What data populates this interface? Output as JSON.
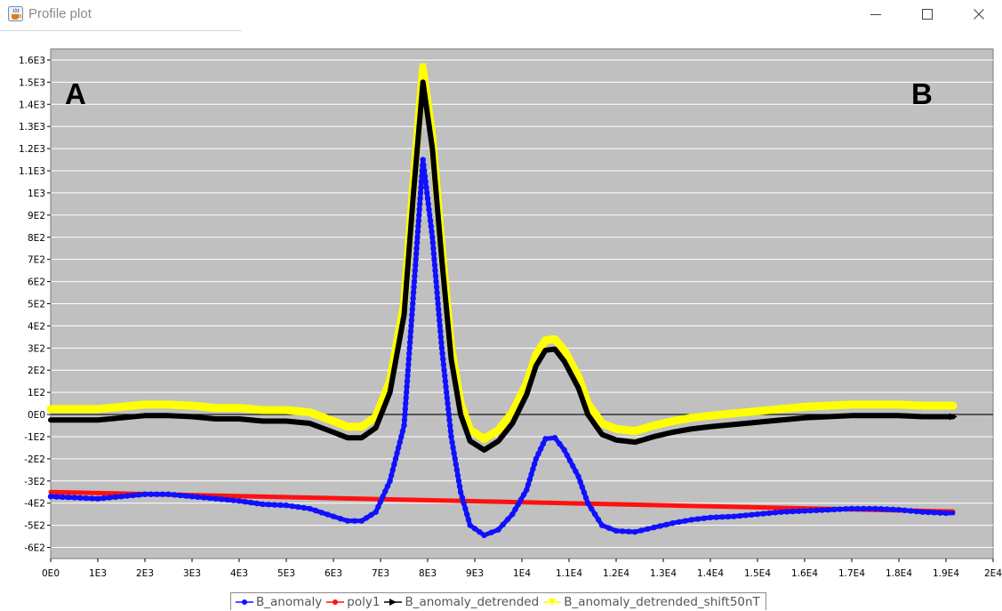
{
  "window": {
    "title": "Profile plot",
    "app_icon": "java-coffee-cup-icon",
    "controls": [
      "minimize-icon",
      "maximize-icon",
      "close-icon"
    ]
  },
  "colors": {
    "plot_background": "#c0c0c0",
    "grid": "#ffffff",
    "zero_line": "#000000",
    "B_anomaly": "#1010ff",
    "poly1": "#ff1010",
    "B_anomaly_detrended": "#000000",
    "B_anomaly_detrended_shift50nT": "#ffff00"
  },
  "annotations": {
    "left": "A",
    "right": "B"
  },
  "chart_data": {
    "type": "line",
    "title": "",
    "xlabel": "",
    "ylabel": "",
    "xlim": [
      0,
      20000
    ],
    "ylim": [
      -650,
      1650
    ],
    "grid": true,
    "legend_position": "bottom-center",
    "x_ticks": [
      0,
      1000,
      2000,
      3000,
      4000,
      5000,
      6000,
      7000,
      8000,
      9000,
      10000,
      11000,
      12000,
      13000,
      14000,
      15000,
      16000,
      17000,
      18000,
      19000,
      20000
    ],
    "x_tick_labels": [
      "0E0",
      "1E3",
      "2E3",
      "3E3",
      "4E3",
      "5E3",
      "6E3",
      "7E3",
      "8E3",
      "9E3",
      "1E4",
      "1.1E4",
      "1.2E4",
      "1.3E4",
      "1.4E4",
      "1.5E4",
      "1.6E4",
      "1.7E4",
      "1.8E4",
      "1.9E4",
      "2E4"
    ],
    "y_ticks": [
      -600,
      -500,
      -400,
      -300,
      -200,
      -100,
      0,
      100,
      200,
      300,
      400,
      500,
      600,
      700,
      800,
      900,
      1000,
      1100,
      1200,
      1300,
      1400,
      1500,
      1600
    ],
    "y_tick_labels": [
      "-6E2",
      "-5E2",
      "-4E2",
      "-3E2",
      "-2E2",
      "-1E2",
      "0E0",
      "1E2",
      "2E2",
      "3E2",
      "4E2",
      "5E2",
      "6E2",
      "7E2",
      "8E2",
      "9E2",
      "1E3",
      "1.1E3",
      "1.2E3",
      "1.3E3",
      "1.4E3",
      "1.5E3",
      "1.6E3"
    ],
    "series": [
      {
        "name": "B_anomaly",
        "color": "#1010ff",
        "marker": "circle",
        "points": [
          [
            0,
            -370
          ],
          [
            500,
            -375
          ],
          [
            1000,
            -380
          ],
          [
            1500,
            -370
          ],
          [
            2000,
            -360
          ],
          [
            2500,
            -360
          ],
          [
            3000,
            -370
          ],
          [
            3500,
            -380
          ],
          [
            4000,
            -390
          ],
          [
            4500,
            -405
          ],
          [
            5000,
            -410
          ],
          [
            5500,
            -425
          ],
          [
            6000,
            -460
          ],
          [
            6300,
            -480
          ],
          [
            6600,
            -480
          ],
          [
            6900,
            -440
          ],
          [
            7200,
            -300
          ],
          [
            7500,
            -50
          ],
          [
            7700,
            550
          ],
          [
            7900,
            1150
          ],
          [
            8100,
            800
          ],
          [
            8300,
            300
          ],
          [
            8500,
            -100
          ],
          [
            8700,
            -350
          ],
          [
            8900,
            -500
          ],
          [
            9200,
            -545
          ],
          [
            9500,
            -520
          ],
          [
            9800,
            -450
          ],
          [
            10100,
            -340
          ],
          [
            10300,
            -200
          ],
          [
            10500,
            -110
          ],
          [
            10700,
            -105
          ],
          [
            10900,
            -160
          ],
          [
            11200,
            -280
          ],
          [
            11400,
            -400
          ],
          [
            11700,
            -500
          ],
          [
            12000,
            -525
          ],
          [
            12400,
            -530
          ],
          [
            12800,
            -510
          ],
          [
            13200,
            -490
          ],
          [
            13600,
            -475
          ],
          [
            14000,
            -465
          ],
          [
            14500,
            -460
          ],
          [
            15000,
            -450
          ],
          [
            15500,
            -440
          ],
          [
            16000,
            -435
          ],
          [
            16500,
            -430
          ],
          [
            17000,
            -425
          ],
          [
            17500,
            -425
          ],
          [
            18000,
            -430
          ],
          [
            18500,
            -440
          ],
          [
            19000,
            -445
          ],
          [
            19150,
            -445
          ]
        ]
      },
      {
        "name": "poly1",
        "color": "#ff1010",
        "marker": "circle",
        "points": [
          [
            0,
            -350
          ],
          [
            19150,
            -438
          ]
        ]
      },
      {
        "name": "B_anomaly_detrended",
        "color": "#000000",
        "marker": "triangle-right",
        "points": [
          [
            0,
            -25
          ],
          [
            500,
            -25
          ],
          [
            1000,
            -25
          ],
          [
            1500,
            -15
          ],
          [
            2000,
            -5
          ],
          [
            2500,
            -5
          ],
          [
            3000,
            -10
          ],
          [
            3500,
            -20
          ],
          [
            4000,
            -20
          ],
          [
            4500,
            -30
          ],
          [
            5000,
            -30
          ],
          [
            5500,
            -40
          ],
          [
            6000,
            -80
          ],
          [
            6300,
            -105
          ],
          [
            6600,
            -105
          ],
          [
            6900,
            -60
          ],
          [
            7200,
            100
          ],
          [
            7500,
            450
          ],
          [
            7700,
            1000
          ],
          [
            7900,
            1500
          ],
          [
            8100,
            1200
          ],
          [
            8300,
            700
          ],
          [
            8500,
            250
          ],
          [
            8700,
            0
          ],
          [
            8900,
            -120
          ],
          [
            9200,
            -160
          ],
          [
            9500,
            -120
          ],
          [
            9800,
            -40
          ],
          [
            10100,
            90
          ],
          [
            10300,
            220
          ],
          [
            10500,
            290
          ],
          [
            10700,
            295
          ],
          [
            10900,
            240
          ],
          [
            11200,
            120
          ],
          [
            11400,
            0
          ],
          [
            11700,
            -90
          ],
          [
            12000,
            -115
          ],
          [
            12400,
            -125
          ],
          [
            12800,
            -100
          ],
          [
            13200,
            -80
          ],
          [
            13600,
            -65
          ],
          [
            14000,
            -55
          ],
          [
            14500,
            -45
          ],
          [
            15000,
            -35
          ],
          [
            15500,
            -25
          ],
          [
            16000,
            -15
          ],
          [
            16500,
            -10
          ],
          [
            17000,
            -5
          ],
          [
            17500,
            -5
          ],
          [
            18000,
            -5
          ],
          [
            18500,
            -10
          ],
          [
            19000,
            -10
          ],
          [
            19150,
            -10
          ]
        ]
      },
      {
        "name": "B_anomaly_detrended_shift50nT",
        "color": "#ffff00",
        "marker": "triangle-down",
        "points": [
          [
            0,
            25
          ],
          [
            500,
            25
          ],
          [
            1000,
            25
          ],
          [
            1500,
            35
          ],
          [
            2000,
            45
          ],
          [
            2500,
            45
          ],
          [
            3000,
            40
          ],
          [
            3500,
            30
          ],
          [
            4000,
            30
          ],
          [
            4500,
            20
          ],
          [
            5000,
            20
          ],
          [
            5500,
            10
          ],
          [
            6000,
            -30
          ],
          [
            6300,
            -55
          ],
          [
            6600,
            -55
          ],
          [
            6900,
            -10
          ],
          [
            7200,
            150
          ],
          [
            7500,
            500
          ],
          [
            7700,
            1050
          ],
          [
            7900,
            1560
          ],
          [
            8100,
            1250
          ],
          [
            8300,
            750
          ],
          [
            8500,
            300
          ],
          [
            8700,
            50
          ],
          [
            8900,
            -70
          ],
          [
            9200,
            -110
          ],
          [
            9500,
            -70
          ],
          [
            9800,
            10
          ],
          [
            10100,
            140
          ],
          [
            10300,
            270
          ],
          [
            10500,
            335
          ],
          [
            10700,
            340
          ],
          [
            10900,
            290
          ],
          [
            11200,
            170
          ],
          [
            11400,
            50
          ],
          [
            11700,
            -40
          ],
          [
            12000,
            -65
          ],
          [
            12400,
            -75
          ],
          [
            12800,
            -50
          ],
          [
            13200,
            -30
          ],
          [
            13600,
            -15
          ],
          [
            14000,
            -5
          ],
          [
            14500,
            5
          ],
          [
            15000,
            15
          ],
          [
            15500,
            25
          ],
          [
            16000,
            35
          ],
          [
            16500,
            40
          ],
          [
            17000,
            45
          ],
          [
            17500,
            45
          ],
          [
            18000,
            45
          ],
          [
            18500,
            40
          ],
          [
            19000,
            40
          ],
          [
            19150,
            40
          ]
        ]
      }
    ]
  }
}
